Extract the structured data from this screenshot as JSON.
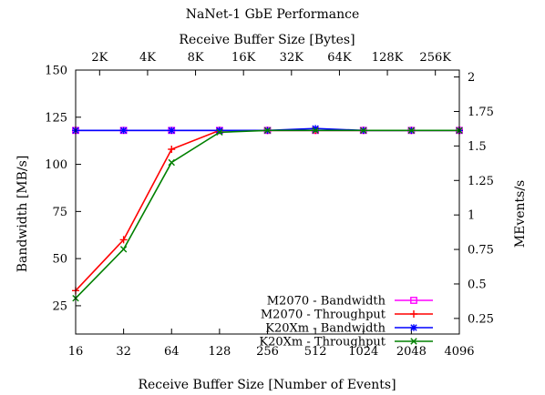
{
  "chart_data": {
    "type": "line",
    "title": "NaNet-1 GbE Performance",
    "xlabel": "Receive Buffer Size [Number of Events]",
    "x2label": "Receive Buffer Size [Bytes]",
    "ylabel": "Bandwidth [MB/s]",
    "y2label": "MEvents/s",
    "x_scale": "log2",
    "categories": [
      "16",
      "32",
      "64",
      "128",
      "256",
      "512",
      "1024",
      "2048",
      "4096"
    ],
    "x": [
      16,
      32,
      64,
      128,
      256,
      512,
      1024,
      2048,
      4096
    ],
    "x2_ticks": [
      "2K",
      "4K",
      "8K",
      "16K",
      "32K",
      "64K",
      "128K",
      "256K"
    ],
    "ylim": [
      10,
      150
    ],
    "yticks": [
      25,
      50,
      75,
      100,
      125,
      150
    ],
    "y2lim": [
      0.137,
      2.05
    ],
    "y2ticks": [
      {
        "value": 0.25,
        "label": "0.25"
      },
      {
        "value": 0.5,
        "label": "0.5"
      },
      {
        "value": 0.75,
        "label": "0.75"
      },
      {
        "value": 1,
        "label": "1"
      },
      {
        "value": 1.25,
        "label": "1.25"
      },
      {
        "value": 1.5,
        "label": "1.5"
      },
      {
        "value": 1.75,
        "label": "1.75"
      },
      {
        "value": 2,
        "label": "2"
      }
    ],
    "grid": false,
    "legend_position": "bottom-right",
    "series": [
      {
        "name": "M2070 - Bandwidth",
        "color": "#ff00ff",
        "marker": "square",
        "values": [
          118,
          118,
          118,
          118,
          118,
          118,
          118,
          118,
          118
        ]
      },
      {
        "name": "M2070 - Throughput",
        "color": "#ff0000",
        "marker": "plus",
        "values": [
          33,
          60,
          108,
          118,
          118,
          118,
          118,
          118,
          118
        ]
      },
      {
        "name": "K20Xm - Bandwidth",
        "color": "#0000ff",
        "marker": "star",
        "values": [
          118,
          118,
          118,
          118,
          118,
          119,
          118,
          118,
          118
        ]
      },
      {
        "name": "K20Xm - Throughput",
        "color": "#008000",
        "marker": "x",
        "values": [
          29,
          55,
          101,
          117,
          118,
          118,
          118,
          118,
          118
        ]
      }
    ]
  }
}
